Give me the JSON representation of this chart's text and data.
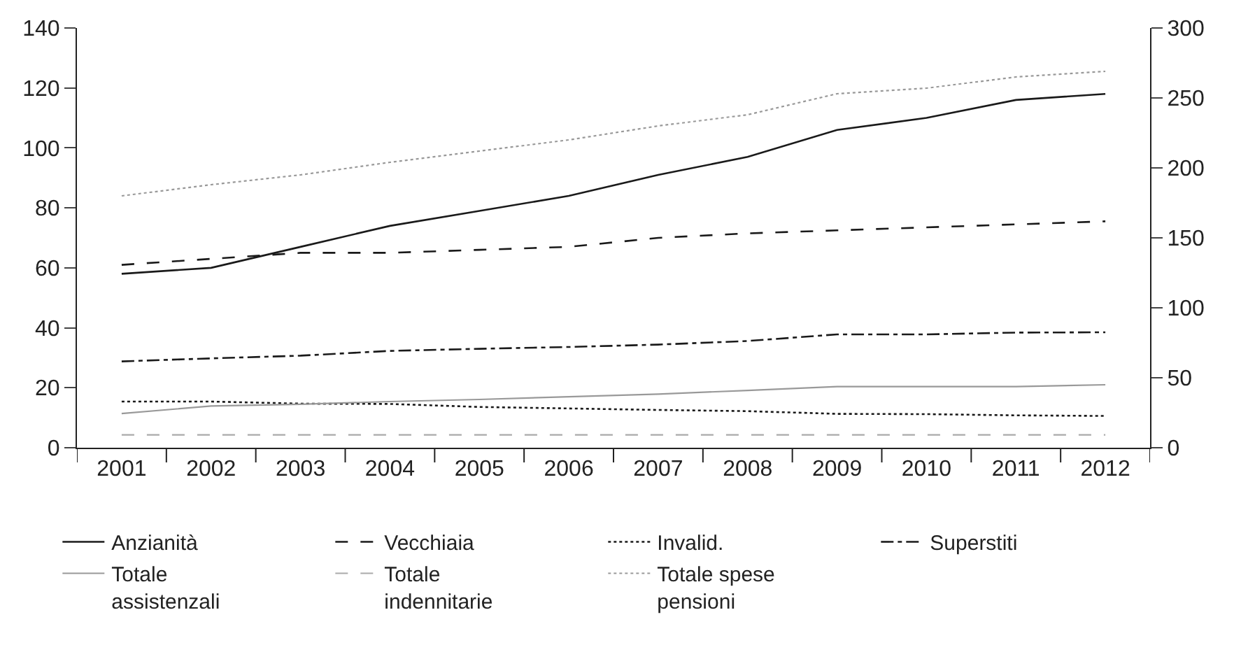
{
  "chart_data": {
    "type": "line",
    "categories": [
      "2001",
      "2002",
      "2003",
      "2004",
      "2005",
      "2006",
      "2007",
      "2008",
      "2009",
      "2010",
      "2011",
      "2012"
    ],
    "series": [
      {
        "name": "Anzianità",
        "color": "#1a1a1a",
        "line_style": "solid",
        "values": [
          58,
          60,
          67,
          74,
          79,
          84,
          91,
          97,
          106,
          110,
          116,
          118
        ]
      },
      {
        "name": "Vecchiaia",
        "color": "#1a1a1a",
        "line_style": "dashed",
        "values": [
          61,
          63,
          65,
          65,
          66,
          67,
          70,
          71.5,
          72.5,
          73.5,
          74.5,
          75.5
        ]
      },
      {
        "name": "Invalid.",
        "color": "#1a1a1a",
        "line_style": "dotted",
        "values": [
          15.4,
          15.4,
          14.7,
          14.6,
          13.6,
          13.1,
          12.6,
          12.2,
          11.3,
          11.2,
          10.8,
          10.6
        ]
      },
      {
        "name": "Superstiti",
        "color": "#1a1a1a",
        "line_style": "dashdot",
        "values": [
          28.8,
          29.8,
          30.7,
          32.3,
          33,
          33.6,
          34.4,
          35.6,
          37.8,
          37.8,
          38.4,
          38.5
        ]
      },
      {
        "name": "Totale assistenzali",
        "color": "#999999",
        "line_style": "solid",
        "values": [
          11.4,
          13.9,
          14.5,
          15.4,
          16.1,
          17,
          17.9,
          19.1,
          20.4,
          20.4,
          20.4,
          21
        ]
      },
      {
        "name": "Totale indennitarie",
        "color": "#aaaaaa",
        "line_style": "dashed",
        "values": [
          4.3,
          4.3,
          4.3,
          4.3,
          4.3,
          4.3,
          4.3,
          4.3,
          4.3,
          4.3,
          4.3,
          4.3
        ]
      },
      {
        "name": "Totale spese pensioni",
        "color": "#999999",
        "line_style": "dotted",
        "axis": "y2",
        "values": [
          180,
          188,
          195,
          204,
          212,
          220,
          230,
          238,
          253,
          257,
          265,
          269
        ]
      }
    ],
    "ylim": [
      0,
      140
    ],
    "yticks": [
      0,
      20,
      40,
      60,
      80,
      100,
      120,
      140
    ],
    "y2lim": [
      0,
      300
    ],
    "y2ticks": [
      0,
      50,
      100,
      150,
      200,
      250,
      300
    ],
    "legend": "bottom",
    "marker": "none"
  }
}
